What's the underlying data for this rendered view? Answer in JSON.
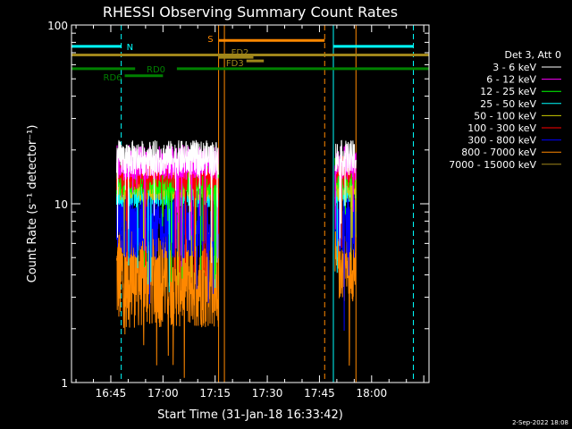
{
  "chart_data": {
    "type": "line",
    "title": "RHESSI Observing Summary Count Rates",
    "xlabel": "Start Time (31-Jan-18 16:33:42)",
    "ylabel": "Count Rate (s⁻¹ detector⁻¹)",
    "y_scale": "log",
    "ylim": [
      1,
      100
    ],
    "xlim": [
      "16:33:42",
      "18:16:30"
    ],
    "x_ticks": [
      "16:45",
      "17:00",
      "17:15",
      "17:30",
      "17:45",
      "18:00"
    ],
    "y_ticks": [
      {
        "value": 1,
        "label": "1"
      },
      {
        "value": 10,
        "label": "10"
      },
      {
        "value": 100,
        "label": "100"
      }
    ],
    "legend_title": "Det 3, Att 0",
    "legend_position": "right",
    "series": [
      {
        "name": "3 - 6 keV",
        "color": "#ffffff",
        "segments": [
          {
            "start": "16:46:40",
            "end": "17:16:00",
            "level": 18,
            "spread": 0.1
          },
          {
            "start": "17:49:30",
            "end": "17:55:30",
            "level": 18,
            "spread": 0.1
          }
        ]
      },
      {
        "name": "6 - 12 keV",
        "color": "#ff00ff",
        "segments": [
          {
            "start": "16:46:40",
            "end": "17:16:00",
            "level": 17,
            "spread": 0.1
          },
          {
            "start": "17:49:30",
            "end": "17:55:30",
            "level": 17,
            "spread": 0.1
          }
        ]
      },
      {
        "name": "12 - 25 keV",
        "color": "#00ff00",
        "segments": [
          {
            "start": "16:46:40",
            "end": "17:16:00",
            "level": 14,
            "spread": 0.1
          },
          {
            "start": "17:49:30",
            "end": "17:55:30",
            "level": 15,
            "spread": 0.1
          }
        ]
      },
      {
        "name": "25 - 50 keV",
        "color": "#00ffff",
        "segments": [
          {
            "start": "16:46:40",
            "end": "17:16:00",
            "level": 12,
            "spread": 0.1
          },
          {
            "start": "17:49:30",
            "end": "17:55:30",
            "level": 12,
            "spread": 0.1
          }
        ]
      },
      {
        "name": "50 - 100 keV",
        "color": "#cccc00",
        "segments": [
          {
            "start": "16:46:40",
            "end": "17:16:00",
            "level": 13,
            "spread": 0.1
          },
          {
            "start": "17:49:30",
            "end": "17:55:30",
            "level": 13,
            "spread": 0.1
          }
        ]
      },
      {
        "name": "100 - 300 keV",
        "color": "#ff0000",
        "segments": [
          {
            "start": "16:46:40",
            "end": "17:16:00",
            "level": 15,
            "spread": 0.1
          },
          {
            "start": "17:49:30",
            "end": "17:55:30",
            "level": 15,
            "spread": 0.1
          }
        ]
      },
      {
        "name": "300 - 800 keV",
        "color": "#0000ff",
        "segments": [
          {
            "start": "16:46:40",
            "end": "17:16:00",
            "level": 7.5,
            "spread": 0.18
          },
          {
            "start": "17:49:30",
            "end": "17:55:30",
            "level": 7.5,
            "spread": 0.18
          }
        ]
      },
      {
        "name": "800 - 7000 keV",
        "color": "#ff8800",
        "segments": [
          {
            "start": "16:46:40",
            "end": "17:16:00",
            "level": 4,
            "spread": 0.3
          },
          {
            "start": "17:49:30",
            "end": "17:55:30",
            "level": 4.5,
            "spread": 0.2
          }
        ]
      },
      {
        "name": "7000 - 15000 keV",
        "color": "#a0861a",
        "segments": []
      }
    ],
    "flags": [
      {
        "label": "N",
        "color": "#00ffff",
        "level": 76,
        "spans": [
          [
            "16:33:42",
            "16:48:00"
          ],
          [
            "17:49:00",
            "18:12:00"
          ]
        ]
      },
      {
        "label": "S",
        "color": "#ff8800",
        "level": 82,
        "spans": [
          [
            "17:16:00",
            "17:46:30"
          ]
        ]
      },
      {
        "label": "FD2",
        "color": "#a0861a",
        "level": 66,
        "spans": [
          [
            "17:16:00",
            "17:26:00"
          ]
        ]
      },
      {
        "label": "FD3",
        "color": "#a0861a",
        "level": 63,
        "spans": [
          [
            "17:24:00",
            "17:29:00"
          ]
        ]
      },
      {
        "label": "",
        "color": "#a0861a",
        "level": 68,
        "spans": [
          [
            "16:33:42",
            "18:16:30"
          ]
        ]
      },
      {
        "label": "RD0",
        "color": "#008000",
        "level": 57,
        "spans": [
          [
            "16:33:42",
            "16:52:00"
          ],
          [
            "17:04:00",
            "18:16:30"
          ]
        ]
      },
      {
        "label": "RD6",
        "color": "#008000",
        "level": 52,
        "spans": [
          [
            "16:49:00",
            "17:00:00"
          ]
        ]
      }
    ],
    "vlines": [
      {
        "time": "16:33:42",
        "color": "#00ffff",
        "style": "solid"
      },
      {
        "time": "16:48:00",
        "color": "#00ffff",
        "style": "dashed"
      },
      {
        "time": "17:16:00",
        "color": "#ff8800",
        "style": "solid"
      },
      {
        "time": "17:17:40",
        "color": "#ff8800",
        "style": "solid"
      },
      {
        "time": "17:46:30",
        "color": "#ff8800",
        "style": "dashed"
      },
      {
        "time": "17:49:00",
        "color": "#00ffff",
        "style": "solid"
      },
      {
        "time": "17:55:30",
        "color": "#ff8800",
        "style": "solid"
      },
      {
        "time": "18:12:00",
        "color": "#00ffff",
        "style": "dashed"
      }
    ]
  },
  "footer": {
    "date_stamp": "2-Sep-2022 18:08"
  }
}
